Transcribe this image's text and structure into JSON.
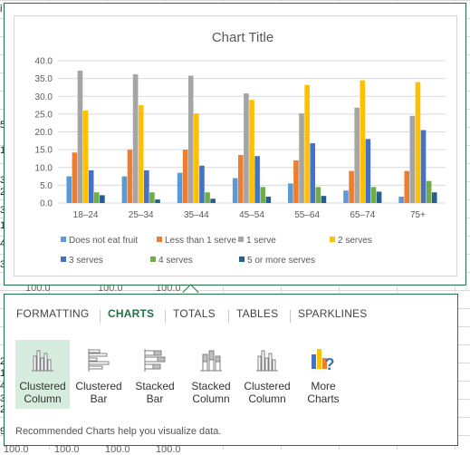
{
  "sheet": {
    "edge_text": [
      "i",
      "5",
      "1",
      "3",
      "2",
      "3",
      "1",
      "4",
      "3",
      "2",
      "1",
      "4",
      "3",
      "2",
      "9"
    ],
    "row_values": [
      "100.0",
      "100.0",
      "100.0"
    ],
    "bottom_values": [
      "100.0",
      "100.0",
      "100.0",
      "100.0"
    ]
  },
  "chart_data": {
    "type": "bar",
    "title": "Chart Title",
    "categories": [
      "18–24",
      "25–34",
      "35–44",
      "45–54",
      "55–64",
      "65–74",
      "75+"
    ],
    "ylim": [
      0,
      40
    ],
    "yticks": [
      "0.0",
      "5.0",
      "10.0",
      "15.0",
      "20.0",
      "25.0",
      "30.0",
      "35.0",
      "40.0"
    ],
    "grid": true,
    "legend_position": "bottom",
    "series": [
      {
        "name": "Does not eat fruit",
        "color": "#5b9bd5",
        "values": [
          7.5,
          7.5,
          8.5,
          7,
          5.5,
          3.5,
          1.8
        ]
      },
      {
        "name": "Less than 1 serve",
        "color": "#ed7d31",
        "values": [
          14.2,
          15,
          15,
          13.5,
          12,
          9,
          9
        ]
      },
      {
        "name": "1 serve",
        "color": "#a5a5a5",
        "values": [
          37.2,
          36.2,
          35.8,
          30.8,
          25.2,
          26.8,
          24.5
        ]
      },
      {
        "name": "2 serves",
        "color": "#ffc000",
        "values": [
          26,
          27.5,
          25.2,
          29,
          33.2,
          34.5,
          34
        ]
      },
      {
        "name": "3 serves",
        "color": "#4472c4",
        "values": [
          9.2,
          9.2,
          10.5,
          13.2,
          16.8,
          18,
          20.5
        ]
      },
      {
        "name": "4 serves",
        "color": "#70ad47",
        "values": [
          3,
          3,
          3,
          4.5,
          4.5,
          4.5,
          6.2
        ]
      },
      {
        "name": "5 or more serves",
        "color": "#255e91",
        "values": [
          2.2,
          1,
          1.2,
          1.8,
          2,
          3.2,
          3
        ]
      }
    ]
  },
  "quick_analysis": {
    "tabs": [
      "FORMATTING",
      "CHARTS",
      "TOTALS",
      "TABLES",
      "SPARKLINES"
    ],
    "active_tab": "CHARTS",
    "items": [
      {
        "line1": "Clustered",
        "line2": "Column",
        "icon": "clustered-column-icon",
        "selected": true
      },
      {
        "line1": "Clustered",
        "line2": "Bar",
        "icon": "clustered-bar-icon",
        "selected": false
      },
      {
        "line1": "Stacked",
        "line2": "Bar",
        "icon": "stacked-bar-icon",
        "selected": false
      },
      {
        "line1": "Stacked",
        "line2": "Column",
        "icon": "stacked-column-icon",
        "selected": false
      },
      {
        "line1": "Clustered",
        "line2": "Column",
        "icon": "clustered-column-icon",
        "selected": false
      },
      {
        "line1": "More",
        "line2": "Charts",
        "icon": "more-charts-icon",
        "selected": false
      }
    ],
    "footer": "Recommended Charts help you visualize data."
  }
}
